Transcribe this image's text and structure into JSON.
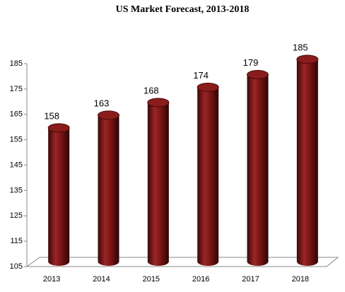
{
  "chart_data": {
    "type": "bar",
    "title": "US Market Forecast, 2013-2018",
    "categories": [
      "2013",
      "2014",
      "2015",
      "2016",
      "2017",
      "2018"
    ],
    "values": [
      158,
      163,
      168,
      174,
      179,
      185
    ],
    "color": "#7a1515",
    "ylim": [
      105,
      185
    ],
    "yticks": [
      105,
      115,
      125,
      135,
      145,
      155,
      165,
      175,
      185
    ]
  }
}
